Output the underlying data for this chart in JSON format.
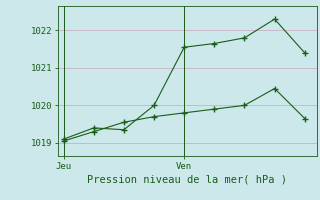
{
  "xlabel": "Pression niveau de la mer( hPa )",
  "background_color": "#cce8ea",
  "grid_color": "#c8b0c8",
  "line_color": "#1a5c1a",
  "yticks": [
    1019,
    1020,
    1021,
    1022
  ],
  "xtick_labels": [
    "Jeu",
    "Ven"
  ],
  "xtick_positions": [
    0,
    4
  ],
  "line1_x": [
    0,
    1,
    2,
    3,
    4,
    5,
    6,
    7,
    8
  ],
  "line1_y": [
    1019.1,
    1019.4,
    1019.35,
    1020.0,
    1021.55,
    1021.65,
    1021.8,
    1022.3,
    1021.4
  ],
  "line2_x": [
    0,
    1,
    2,
    3,
    4,
    5,
    6,
    7,
    8
  ],
  "line2_y": [
    1019.05,
    1019.3,
    1019.55,
    1019.7,
    1019.8,
    1019.9,
    1020.0,
    1020.45,
    1019.65
  ],
  "ylim": [
    1018.65,
    1022.65
  ],
  "xlim": [
    -0.2,
    8.4
  ],
  "vlines": [
    0,
    4
  ]
}
